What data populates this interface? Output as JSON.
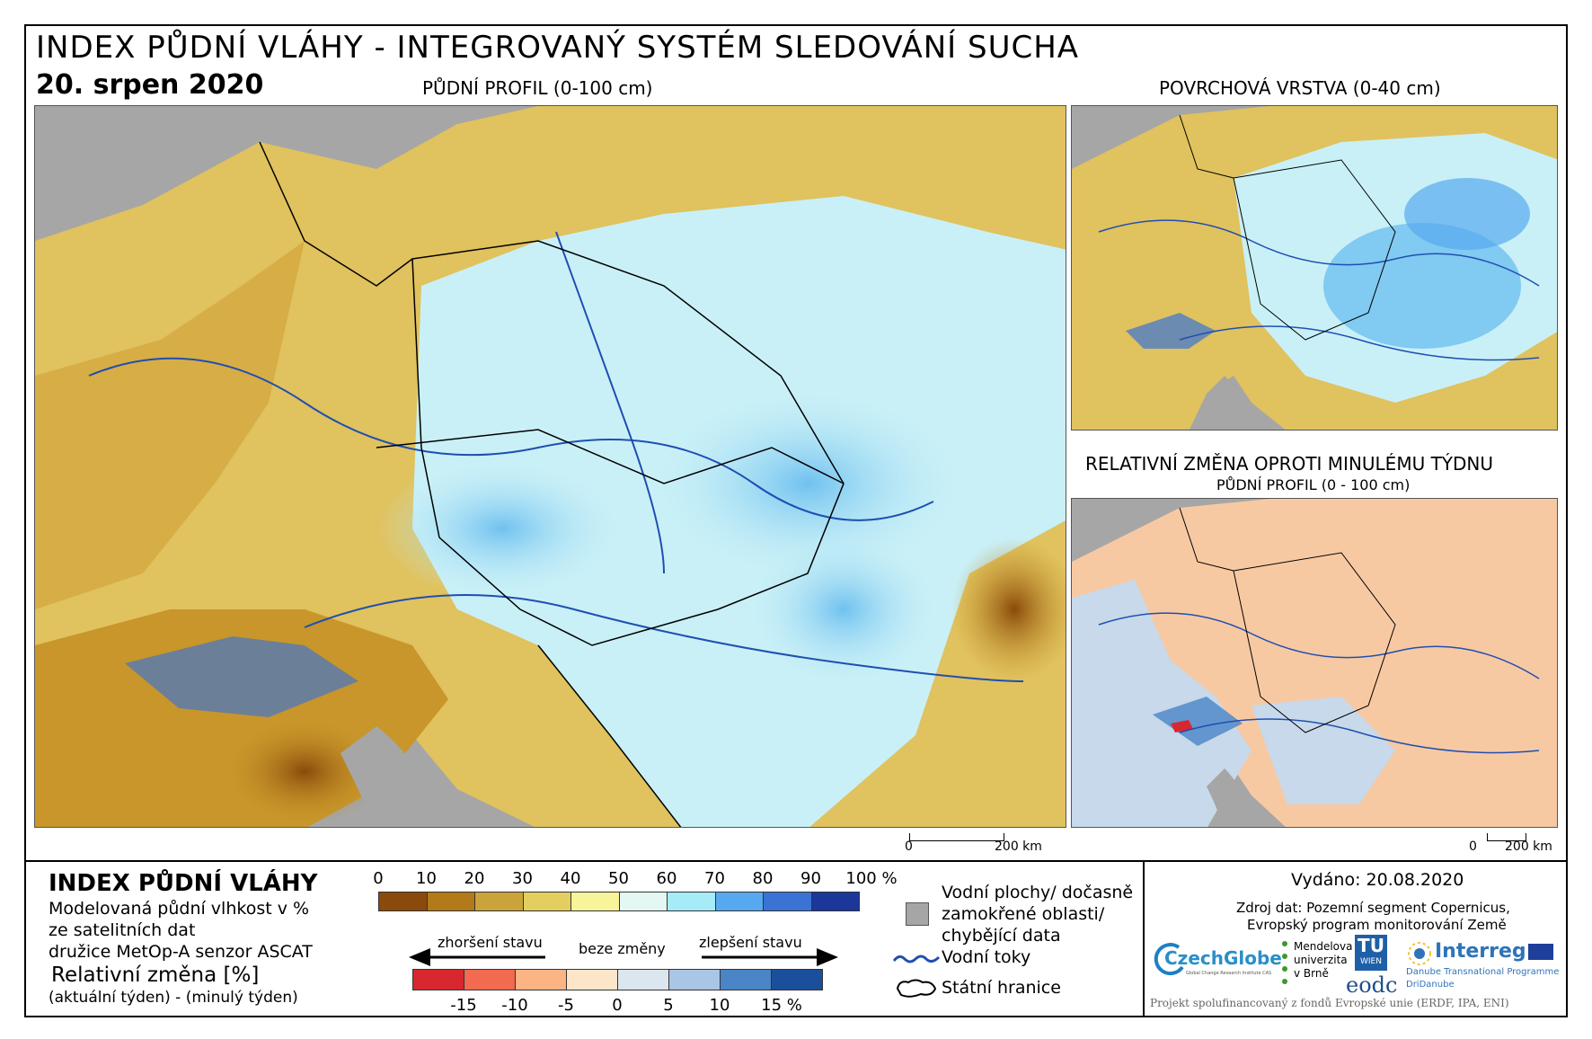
{
  "header": {
    "title": "INDEX PŮDNÍ VLÁHY - INTEGROVANÝ SYSTÉM SLEDOVÁNÍ SUCHA",
    "date": "20. srpen 2020"
  },
  "maps": {
    "main_caption": "PŮDNÍ PROFIL (0-100 cm)",
    "top_right_caption": "POVRCHOVÁ VRSTVA (0-40 cm)",
    "bottom_right_caption": "RELATIVNÍ ZMĚNA OPROTI MINULÉMU TÝDNU",
    "bottom_right_subcaption": "PŮDNÍ PROFIL (0 - 100 cm)",
    "scale_zero": "0",
    "scale_label": "200 km",
    "colors": {
      "sea": "#a6a6a6",
      "dry_dark": "#8a4a0b",
      "dry": "#c8962a",
      "neutral": "#f2e58a",
      "wet_light": "#c9f0f7",
      "wet": "#6fc1f0",
      "wet_dark": "#2e6ed0",
      "change_base": "#f7c9a3",
      "change_pos": "#c7d9ea"
    }
  },
  "legend": {
    "title": "INDEX PŮDNÍ VLÁHY",
    "desc_line1": "Modelovaná půdní vlhkost v %",
    "desc_line2": "ze satelitních dat",
    "desc_line3": "družice MetOp-A senzor ASCAT",
    "rel_title": "Relativní změna [%]",
    "rel_desc": "(aktuální týden) - (minulý týden)",
    "index_ticks": [
      "0",
      "10",
      "20",
      "30",
      "40",
      "50",
      "60",
      "70",
      "80",
      "90",
      "100 %"
    ],
    "index_colors": [
      "#8a4a0b",
      "#b27a18",
      "#caa43b",
      "#e2cf60",
      "#f7f49a",
      "#e4f8f3",
      "#a6ebf8",
      "#57a9ef",
      "#3a73d4",
      "#1b3799"
    ],
    "worse_label": "zhoršení stavu",
    "nochange_label": "beze změny",
    "better_label": "zlepšení stavu",
    "change_ticks": [
      "-15",
      "-10",
      "-5",
      "0",
      "5",
      "10",
      "15 %"
    ],
    "change_colors": [
      "#d7282f",
      "#f26a4f",
      "#fbb584",
      "#fde5ca",
      "#dce6ef",
      "#a9c6e4",
      "#4a85c8",
      "#1b4f9c"
    ],
    "water_label_line1": "Vodní plochy/ dočasně",
    "water_label_line2": "zamokřené oblasti/",
    "water_label_line3": "chybějící data",
    "rivers_label": "Vodní toky",
    "borders_label": "Státní hranice"
  },
  "footer": {
    "issued": "Vydáno: 20.08.2020",
    "source_line1": "Zdroj dat: Pozemní segment Copernicus,",
    "source_line2": "Evropský program monitorování Země",
    "czechglobe": "CzechGlobe",
    "czechglobe_sub": "Global Change Research Institute CAS",
    "mendel_line1": "Mendelova",
    "mendel_line2": "univerzita",
    "mendel_line3": "v Brně",
    "tu": "TU",
    "tu_sub": "WIEN",
    "eodc": "eodc",
    "interreg": "Interreg",
    "interreg_sub1": "Danube Transnational Programme",
    "interreg_sub2": "DriDanube",
    "project": "Projekt spolufinancovaný z fondů Evropské unie (ERDF, IPA, ENI)"
  }
}
